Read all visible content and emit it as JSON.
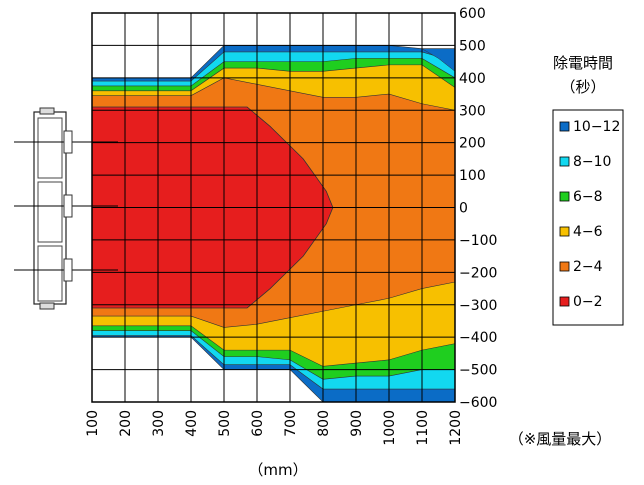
{
  "chart_data": {
    "type": "heatmap",
    "legend_title": "除電時間",
    "legend_subtitle": "（秒）",
    "xlabel": "（mm）",
    "note": "（※風量最大）",
    "x_ticks": [
      "100",
      "200",
      "300",
      "400",
      "500",
      "600",
      "700",
      "800",
      "900",
      "1000",
      "1100",
      "1200"
    ],
    "y_ticks": [
      "600",
      "500",
      "400",
      "300",
      "200",
      "100",
      "0",
      "−100",
      "−200",
      "−300",
      "−400",
      "−500",
      "−600"
    ],
    "xlim": [
      100,
      1200
    ],
    "ylim": [
      -600,
      600
    ],
    "grid": true,
    "legend_position": "right",
    "levels": [
      {
        "label": "10−12",
        "color": "#0b6cc6"
      },
      {
        "label": "8−10",
        "color": "#12d8f0"
      },
      {
        "label": "6−8",
        "color": "#1fce1f"
      },
      {
        "label": "4−6",
        "color": "#f7c000"
      },
      {
        "label": "2−4",
        "color": "#f07814"
      },
      {
        "label": "0−2",
        "color": "#e61e1e"
      }
    ],
    "region_boundaries": {
      "x": [
        100,
        400,
        500,
        600,
        700,
        800,
        900,
        1000,
        1100,
        1200
      ],
      "outer_top": [
        400,
        400,
        500,
        500,
        500,
        500,
        500,
        500,
        490,
        490
      ],
      "blue_top": [
        390,
        390,
        480,
        480,
        480,
        480,
        480,
        480,
        480,
        450
      ],
      "cyan_top": [
        375,
        375,
        450,
        450,
        450,
        450,
        460,
        460,
        460,
        400
      ],
      "green_top": [
        360,
        360,
        430,
        430,
        420,
        420,
        430,
        440,
        440,
        370
      ],
      "yellow_top": [
        345,
        345,
        400,
        380,
        360,
        340,
        340,
        350,
        320,
        300
      ],
      "red_top": [
        310,
        310,
        310,
        310,
        250,
        100,
        -10,
        -10,
        -10,
        -10
      ],
      "outer_bottom": [
        -400,
        -400,
        -500,
        -500,
        -500,
        -600,
        -600,
        -600,
        -600,
        -600
      ],
      "blue_bottom": [
        -395,
        -395,
        -485,
        -485,
        -485,
        -560,
        -560,
        -560,
        -560,
        -560
      ],
      "cyan_bottom": [
        -380,
        -380,
        -460,
        -460,
        -470,
        -530,
        -520,
        -520,
        -500,
        -500
      ],
      "green_bottom": [
        -365,
        -365,
        -440,
        -440,
        -440,
        -490,
        -480,
        -470,
        -440,
        -420
      ],
      "yellow_bottom": [
        -350,
        -350,
        -420,
        -420,
        -400,
        -400,
        -400,
        -380,
        -350,
        -350
      ],
      "orange_bottom": [
        -335,
        -335,
        -370,
        -360,
        -340,
        -320,
        -300,
        -280,
        -250,
        -230
      ],
      "red_bottom": [
        -310,
        -310,
        -310,
        -310,
        -280,
        -110,
        -110,
        -110,
        -110,
        -110
      ]
    },
    "red_core_right": {
      "y": [
        310,
        250,
        150,
        50,
        0,
        -50,
        -150,
        -250,
        -310
      ],
      "x": [
        570,
        640,
        740,
        810,
        830,
        810,
        740,
        640,
        570
      ]
    }
  }
}
